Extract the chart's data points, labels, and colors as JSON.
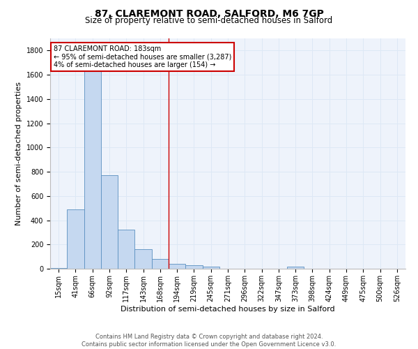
{
  "title_line1": "87, CLAREMONT ROAD, SALFORD, M6 7GP",
  "title_line2": "Size of property relative to semi-detached houses in Salford",
  "xlabel": "Distribution of semi-detached houses by size in Salford",
  "ylabel": "Number of semi-detached properties",
  "categories": [
    "15sqm",
    "41sqm",
    "66sqm",
    "92sqm",
    "117sqm",
    "143sqm",
    "168sqm",
    "194sqm",
    "219sqm",
    "245sqm",
    "271sqm",
    "296sqm",
    "322sqm",
    "347sqm",
    "373sqm",
    "398sqm",
    "424sqm",
    "449sqm",
    "475sqm",
    "500sqm",
    "526sqm"
  ],
  "values": [
    5,
    490,
    1630,
    770,
    325,
    160,
    80,
    40,
    27,
    15,
    0,
    0,
    0,
    0,
    15,
    0,
    0,
    0,
    0,
    0,
    0
  ],
  "bar_color": "#c5d8f0",
  "bar_edge_color": "#5a8fc0",
  "annotation_text": "87 CLAREMONT ROAD: 183sqm\n← 95% of semi-detached houses are smaller (3,287)\n4% of semi-detached houses are larger (154) →",
  "annotation_box_color": "#ffffff",
  "annotation_box_edge_color": "#cc0000",
  "vline_color": "#cc0000",
  "ylim": [
    0,
    1900
  ],
  "yticks": [
    0,
    200,
    400,
    600,
    800,
    1000,
    1200,
    1400,
    1600,
    1800
  ],
  "grid_color": "#dde8f5",
  "background_color": "#eef3fb",
  "footer_line1": "Contains HM Land Registry data © Crown copyright and database right 2024.",
  "footer_line2": "Contains public sector information licensed under the Open Government Licence v3.0.",
  "title_fontsize": 10,
  "subtitle_fontsize": 8.5,
  "axis_label_fontsize": 8,
  "tick_fontsize": 7,
  "annotation_fontsize": 7,
  "footer_fontsize": 6
}
